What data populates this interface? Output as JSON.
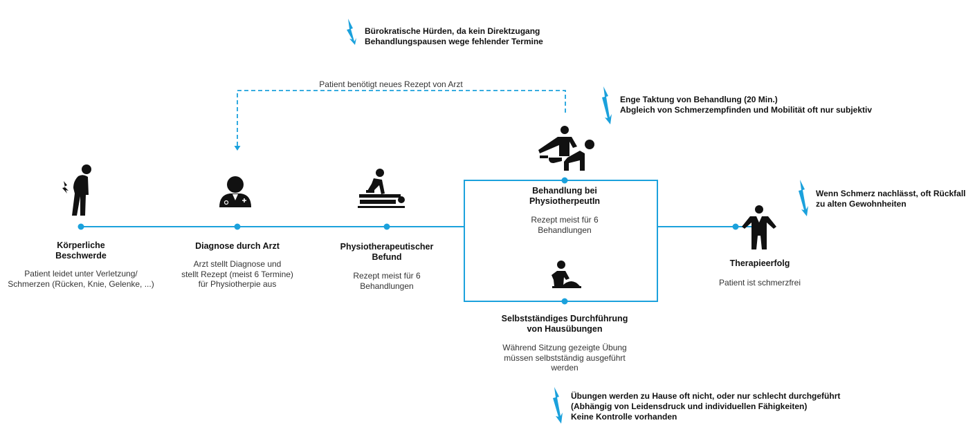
{
  "colors": {
    "accent": "#1ba1dc",
    "icon": "#111111",
    "text": "#222222"
  },
  "loop_label": "Patient benötigt neues Rezept von Arzt",
  "steps": [
    {
      "id": "beschwerde",
      "icon": "back-pain-person-icon",
      "title": [
        "Körperliche",
        "Beschwerde"
      ],
      "desc": [
        "Patient leidet unter Verletzung/",
        "Schmerzen (Rücken, Knie, Gelenke, ...)"
      ]
    },
    {
      "id": "diagnose",
      "icon": "doctor-icon",
      "title": [
        "Diagnose durch Arzt"
      ],
      "desc": [
        "Arzt stellt Diagnose und",
        "stellt Rezept (meist 6 Termine)",
        "für Physiotherpie aus"
      ]
    },
    {
      "id": "befund",
      "icon": "massage-table-icon",
      "title": [
        "Physiotherapeutischer",
        "Befund"
      ],
      "desc": [
        "Rezept meist für 6",
        "Behandlungen"
      ]
    },
    {
      "id": "behandlung",
      "icon": "physiotherapist-treatment-icon",
      "title": [
        "Behandlung bei",
        "PhysiotherpeutIn"
      ],
      "desc": [
        "Rezept meist für 6",
        "Behandlungen"
      ]
    },
    {
      "id": "hausuebungen",
      "icon": "exercise-person-icon",
      "title": [
        "Selbstständiges Durchführung",
        "von Hausübungen"
      ],
      "desc": [
        "Während Sitzung gezeigte Übung",
        "müssen selbstständig ausgeführt",
        "werden"
      ]
    },
    {
      "id": "therapieerfolg",
      "icon": "standing-person-icon",
      "title": [
        "Therapieerfolg"
      ],
      "desc": [
        "Patient ist schmerzfrei"
      ]
    }
  ],
  "issues": [
    {
      "id": "issue-buerokratie",
      "icon": "lightning-icon",
      "lines": [
        "Bürokratische Hürden, da kein Direktzugang",
        "Behandlungspausen wege fehlender Termine"
      ]
    },
    {
      "id": "issue-taktung",
      "icon": "lightning-icon",
      "lines": [
        "Enge Taktung von Behandlung (20 Min.)",
        "Abgleich von Schmerzempfinden und Mobilität oft nur subjektiv"
      ]
    },
    {
      "id": "issue-rueckfall",
      "icon": "lightning-icon",
      "lines": [
        "Wenn Schmerz nachlässt, oft Rückfall",
        "zu alten Gewohnheiten"
      ]
    },
    {
      "id": "issue-hausuebungen",
      "icon": "lightning-icon",
      "lines": [
        "Übungen werden zu Hause oft nicht, oder nur schlecht durchgeführt",
        "(Abhängig von Leidensdruck und individuellen Fähigkeiten)",
        "Keine Kontrolle vorhanden"
      ]
    }
  ]
}
